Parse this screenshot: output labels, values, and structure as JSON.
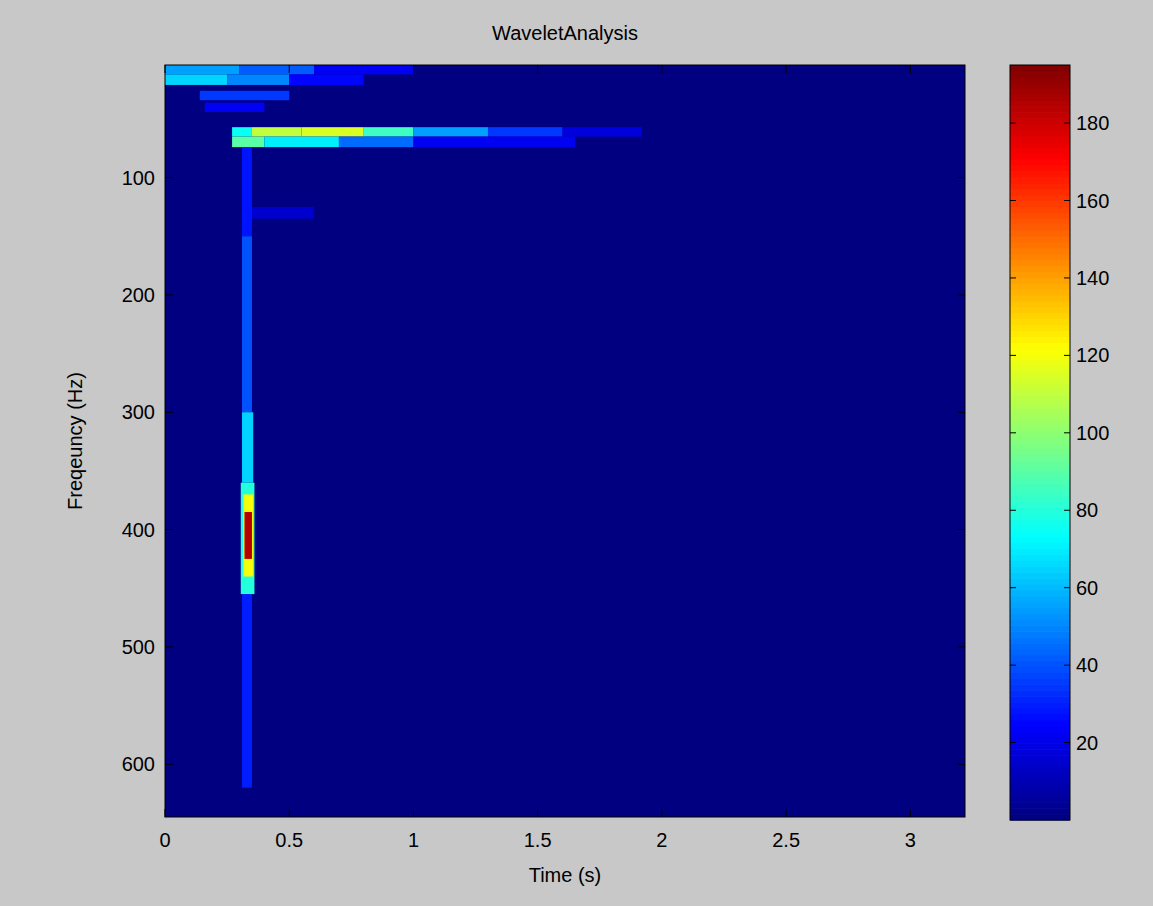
{
  "chart_data": {
    "type": "heatmap",
    "title": "WaveletAnalysis",
    "x_label": "Time (s)",
    "y_label": "Freqeuncy (Hz)",
    "xlim": [
      0,
      3.22
    ],
    "xticks": [
      0,
      0.5,
      1,
      1.5,
      2,
      2.5,
      3
    ],
    "ylim": [
      645,
      4
    ],
    "yticks": [
      100,
      200,
      300,
      400,
      500,
      600
    ],
    "color_range": [
      0,
      195
    ],
    "color_ticks": [
      20,
      40,
      60,
      80,
      100,
      120,
      140,
      160,
      180
    ],
    "cells": [
      {
        "x0": 0,
        "x1": 0.3,
        "y0": 4,
        "y1": 12,
        "value": 55
      },
      {
        "x0": 0.3,
        "x1": 0.6,
        "y0": 4,
        "y1": 12,
        "value": 42
      },
      {
        "x0": 0.6,
        "x1": 1.0,
        "y0": 4,
        "y1": 12,
        "value": 22
      },
      {
        "x0": 0,
        "x1": 0.25,
        "y0": 12,
        "y1": 21,
        "value": 65
      },
      {
        "x0": 0.25,
        "x1": 0.5,
        "y0": 12,
        "y1": 21,
        "value": 50
      },
      {
        "x0": 0.5,
        "x1": 0.8,
        "y0": 12,
        "y1": 21,
        "value": 25
      },
      {
        "x0": 0.14,
        "x1": 0.5,
        "y0": 26,
        "y1": 34,
        "value": 35
      },
      {
        "x0": 0.16,
        "x1": 0.4,
        "y0": 36,
        "y1": 44,
        "value": 22
      },
      {
        "x0": 0.27,
        "x1": 0.35,
        "y0": 57,
        "y1": 65,
        "value": 75
      },
      {
        "x0": 0.35,
        "x1": 0.55,
        "y0": 57,
        "y1": 65,
        "value": 110
      },
      {
        "x0": 0.55,
        "x1": 0.8,
        "y0": 57,
        "y1": 65,
        "value": 115
      },
      {
        "x0": 0.8,
        "x1": 1.0,
        "y0": 57,
        "y1": 65,
        "value": 85
      },
      {
        "x0": 1.0,
        "x1": 1.3,
        "y0": 57,
        "y1": 65,
        "value": 55
      },
      {
        "x0": 1.3,
        "x1": 1.6,
        "y0": 57,
        "y1": 65,
        "value": 35
      },
      {
        "x0": 1.6,
        "x1": 1.92,
        "y0": 57,
        "y1": 65,
        "value": 18
      },
      {
        "x0": 0.27,
        "x1": 0.4,
        "y0": 65,
        "y1": 74,
        "value": 90
      },
      {
        "x0": 0.4,
        "x1": 0.7,
        "y0": 65,
        "y1": 74,
        "value": 70
      },
      {
        "x0": 0.7,
        "x1": 1.0,
        "y0": 65,
        "y1": 74,
        "value": 45
      },
      {
        "x0": 1.0,
        "x1": 1.65,
        "y0": 65,
        "y1": 74,
        "value": 22
      },
      {
        "x0": 0.35,
        "x1": 0.6,
        "y0": 125,
        "y1": 135,
        "value": 15
      },
      {
        "x0": 0.31,
        "x1": 0.35,
        "y0": 74,
        "y1": 150,
        "value": 28
      },
      {
        "x0": 0.31,
        "x1": 0.35,
        "y0": 150,
        "y1": 300,
        "value": 40
      },
      {
        "x0": 0.31,
        "x1": 0.355,
        "y0": 300,
        "y1": 360,
        "value": 65
      },
      {
        "x0": 0.305,
        "x1": 0.36,
        "y0": 360,
        "y1": 455,
        "value": 80
      },
      {
        "x0": 0.315,
        "x1": 0.355,
        "y0": 370,
        "y1": 440,
        "value": 120
      },
      {
        "x0": 0.32,
        "x1": 0.35,
        "y0": 385,
        "y1": 425,
        "value": 185
      },
      {
        "x0": 0.31,
        "x1": 0.35,
        "y0": 455,
        "y1": 620,
        "value": 30
      }
    ]
  }
}
